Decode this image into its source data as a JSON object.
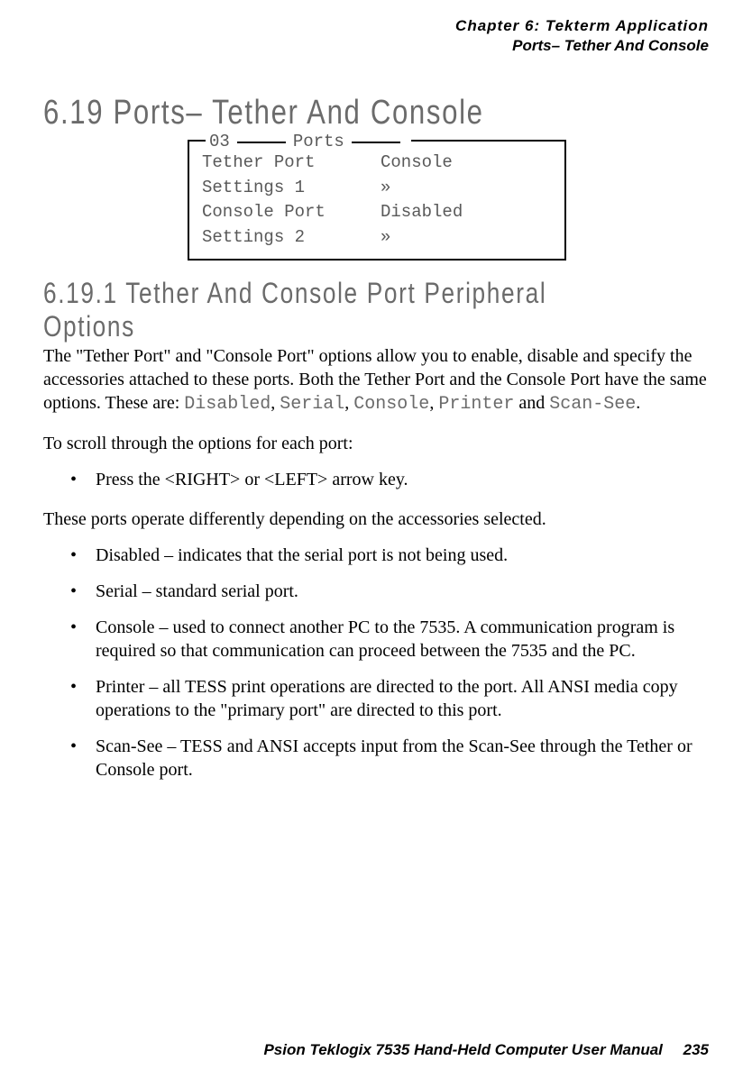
{
  "header": {
    "chapter": "Chapter  6:  Tekterm Application",
    "section": "Ports– Tether And Console"
  },
  "heading1": "6.19   Ports–  Tether And Console",
  "diagram": {
    "num": "03",
    "title": "Ports",
    "rows": [
      {
        "label": "Tether Port",
        "value": "Console"
      },
      {
        "label": "Settings 1",
        "value": "»"
      },
      {
        "label": "Console Port",
        "value": "Disabled"
      },
      {
        "label": "Settings 2",
        "value": "»"
      }
    ]
  },
  "heading2": "6.19.1   Tether And Console Port Peripheral Options",
  "para1a": "The \"Tether Port\" and \"Console Port\" options allow you to enable, disable and specify the accessories attached to these ports. Both the Tether Port and the Console Port have the same options. These are: ",
  "mono1": "Disabled",
  "mono2": "Serial",
  "mono3": "Console",
  "mono4": "Printer",
  "para1b": " and ",
  "mono5": "Scan-See",
  "para1c": ".",
  "para2": "To scroll through the options for each port:",
  "bullet1": "Press the <RIGHT> or <LEFT> arrow key.",
  "para3": "These ports operate differently depending on the accessories selected.",
  "bullets2": {
    "b1": "Disabled – indicates that the serial port is not being used.",
    "b2": "Serial – standard serial port.",
    "b3": "Console – used to connect another PC to the 7535. A communication program is required so that communication can proceed between the 7535 and the PC.",
    "b4": "Printer – all TESS print operations are directed to the port. All ANSI media copy operations to the \"primary port\" are directed to this port.",
    "b5": "Scan-See – TESS and ANSI accepts input from the Scan-See through the Tether or Console port."
  },
  "footer": {
    "text": "Psion Teklogix 7535 Hand-Held Computer User Manual",
    "page": "235"
  }
}
